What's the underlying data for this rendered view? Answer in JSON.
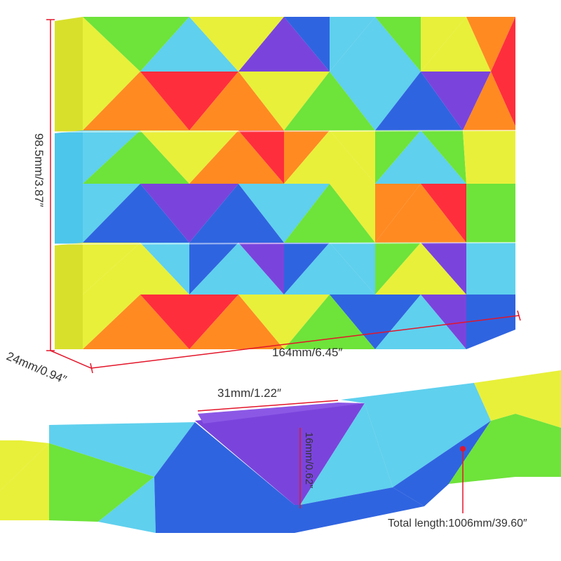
{
  "dimensions": {
    "height_label": "98.5mm/3.87″",
    "width_label": "164mm/6.45″",
    "depth_label": "24mm/0.94″",
    "segment_width_label": "31mm/1.22″",
    "segment_height_label": "16mm/0.62″",
    "total_length_label": "Total length:1006mm/39.60″"
  },
  "colors": {
    "yellow": "#e8f03a",
    "yellow_dark": "#d6dc2c",
    "cyan": "#5fd0ee",
    "cyan_dark": "#3fb6e0",
    "blue": "#2f64e0",
    "blue_dark": "#2452c8",
    "purple": "#7a44dc",
    "purple_dark": "#6a34c8",
    "green": "#6ee33a",
    "green_dark": "#4ccc2c",
    "orange": "#ff8a22",
    "orange_dark": "#f0741a",
    "red": "#ff2e3c",
    "red_dark": "#e61e2c",
    "dimension_line": "#e3162a"
  }
}
